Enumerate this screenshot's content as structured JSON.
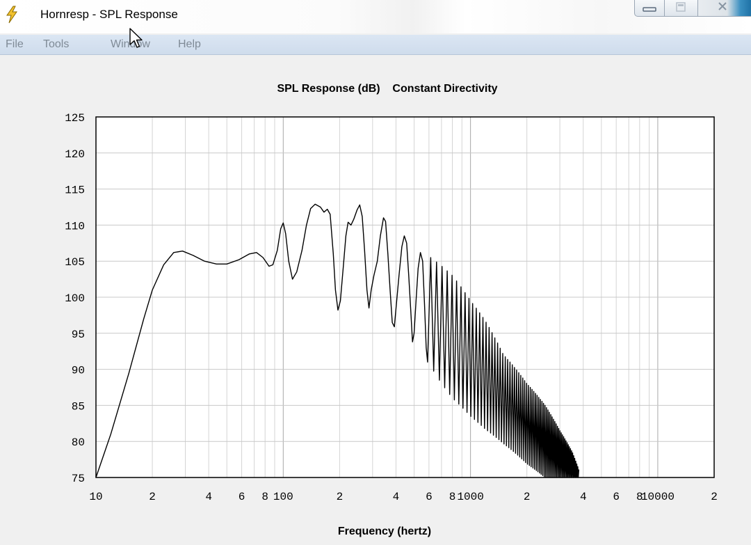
{
  "window": {
    "title": "Hornresp - SPL Response",
    "icon": "lightning-icon"
  },
  "menu": {
    "items": [
      "File",
      "Tools",
      "Window",
      "Help"
    ]
  },
  "chart_data": {
    "type": "line",
    "title": "SPL Response (dB)    Constant Directivity",
    "xlabel": "Frequency (hertz)",
    "ylabel": "",
    "xscale": "log",
    "xlim": [
      10,
      20000
    ],
    "ylim": [
      75,
      125
    ],
    "grid": true,
    "legend": "none",
    "line_color": "#000000",
    "yticks": [
      75,
      80,
      85,
      90,
      95,
      100,
      105,
      110,
      115,
      120,
      125
    ],
    "xtick_labels": [
      {
        "x": 10,
        "label": "10"
      },
      {
        "x": 20,
        "label": "2"
      },
      {
        "x": 40,
        "label": "4"
      },
      {
        "x": 60,
        "label": "6"
      },
      {
        "x": 80,
        "label": "8"
      },
      {
        "x": 100,
        "label": "100"
      },
      {
        "x": 200,
        "label": "2"
      },
      {
        "x": 400,
        "label": "4"
      },
      {
        "x": 600,
        "label": "6"
      },
      {
        "x": 800,
        "label": "8"
      },
      {
        "x": 1000,
        "label": "1000"
      },
      {
        "x": 2000,
        "label": "2"
      },
      {
        "x": 4000,
        "label": "4"
      },
      {
        "x": 6000,
        "label": "6"
      },
      {
        "x": 8000,
        "label": "8"
      },
      {
        "x": 10000,
        "label": "10000"
      },
      {
        "x": 20000,
        "label": "2"
      }
    ],
    "series": [
      {
        "values_smooth": [
          [
            10,
            75
          ],
          [
            12,
            81
          ],
          [
            15,
            89.5
          ],
          [
            18,
            97
          ],
          [
            20,
            101
          ],
          [
            23,
            104.5
          ],
          [
            26,
            106.2
          ],
          [
            29,
            106.4
          ],
          [
            33,
            105.8
          ],
          [
            38,
            105
          ],
          [
            44,
            104.6
          ],
          [
            50,
            104.6
          ],
          [
            58,
            105.2
          ],
          [
            66,
            106
          ],
          [
            72,
            106.2
          ],
          [
            78,
            105.5
          ],
          [
            84,
            104.3
          ],
          [
            88,
            104.5
          ],
          [
            93,
            106.5
          ],
          [
            97,
            109.5
          ],
          [
            100,
            110.3
          ],
          [
            103,
            108.8
          ],
          [
            107,
            105
          ],
          [
            112,
            102.5
          ],
          [
            118,
            103.5
          ],
          [
            126,
            106.5
          ],
          [
            133,
            110
          ],
          [
            140,
            112.3
          ],
          [
            148,
            112.9
          ],
          [
            158,
            112.5
          ],
          [
            165,
            111.8
          ],
          [
            172,
            112.2
          ],
          [
            178,
            111.5
          ],
          [
            185,
            106
          ],
          [
            190,
            101
          ],
          [
            196,
            98.2
          ],
          [
            202,
            99.5
          ],
          [
            209,
            104
          ],
          [
            216,
            108.5
          ],
          [
            222,
            110.4
          ],
          [
            230,
            110
          ],
          [
            238,
            110.8
          ],
          [
            248,
            112.1
          ],
          [
            256,
            112.8
          ],
          [
            264,
            111.2
          ],
          [
            272,
            106.5
          ],
          [
            280,
            101
          ],
          [
            287,
            98.5
          ],
          [
            295,
            101
          ],
          [
            305,
            103
          ],
          [
            318,
            105
          ],
          [
            330,
            108.5
          ],
          [
            343,
            111
          ],
          [
            352,
            110.5
          ],
          [
            362,
            106
          ],
          [
            372,
            101
          ],
          [
            382,
            96.5
          ],
          [
            392,
            95.9
          ],
          [
            402,
            99
          ],
          [
            415,
            103
          ],
          [
            430,
            107
          ],
          [
            443,
            108.5
          ],
          [
            456,
            107.5
          ],
          [
            468,
            103
          ],
          [
            480,
            98
          ],
          [
            490,
            93.8
          ],
          [
            500,
            95
          ],
          [
            512,
            99.5
          ],
          [
            525,
            104
          ],
          [
            540,
            106.2
          ],
          [
            555,
            105
          ],
          [
            568,
            99
          ],
          [
            580,
            93
          ],
          [
            590,
            91
          ]
        ],
        "envelope": {
          "start": 590,
          "end": 3800,
          "cycle_width_hz": 46,
          "upper": [
            [
              590,
              105.8
            ],
            [
              800,
              103
            ],
            [
              1000,
              99.5
            ],
            [
              1200,
              96.7
            ],
            [
              1500,
              92
            ],
            [
              2000,
              88
            ],
            [
              2500,
              85
            ],
            [
              3000,
              81.5
            ],
            [
              3500,
              78.5
            ],
            [
              3800,
              76
            ]
          ],
          "lower": [
            [
              590,
              91
            ],
            [
              700,
              88
            ],
            [
              800,
              86
            ],
            [
              1000,
              83.5
            ],
            [
              1200,
              81.7
            ],
            [
              1500,
              79.7
            ],
            [
              2000,
              76.9
            ],
            [
              2500,
              75
            ],
            [
              3800,
              75
            ]
          ]
        }
      }
    ]
  }
}
